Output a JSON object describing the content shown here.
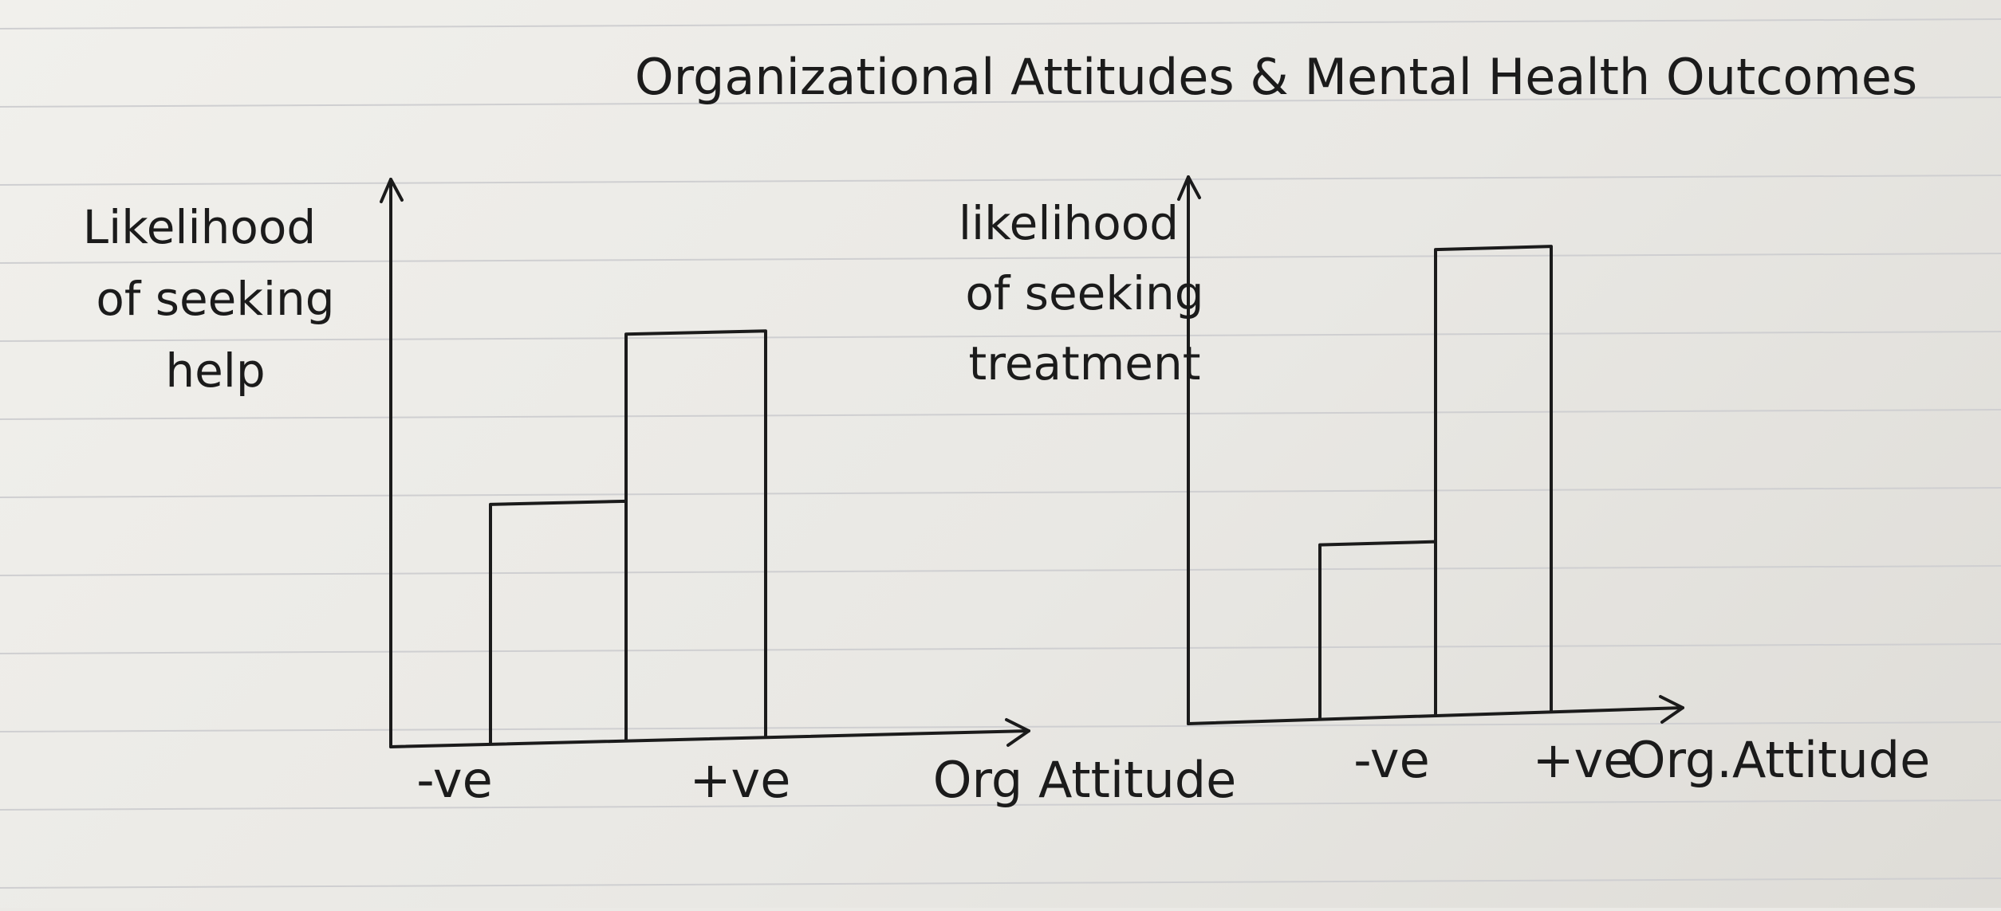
{
  "figure": {
    "title": "Organizational Attitudes & Mental Health Outcomes"
  },
  "chart_data": [
    {
      "type": "bar",
      "categories": [
        "-ve",
        "+ve"
      ],
      "values": [
        0.43,
        0.73
      ],
      "xlabel": "Org Attitude",
      "ylabel_lines": [
        "Likelihood",
        "of seeking",
        "help"
      ],
      "ylim": [
        0,
        1
      ],
      "grid": false,
      "legend": false
    },
    {
      "type": "bar",
      "categories": [
        "-ve",
        "+ve"
      ],
      "values": [
        0.33,
        0.87
      ],
      "xlabel": "Org.Attitude",
      "ylabel_lines": [
        "likelihood",
        "of seeking",
        "treatment"
      ],
      "ylim": [
        0,
        1
      ],
      "grid": false,
      "legend": false
    }
  ]
}
